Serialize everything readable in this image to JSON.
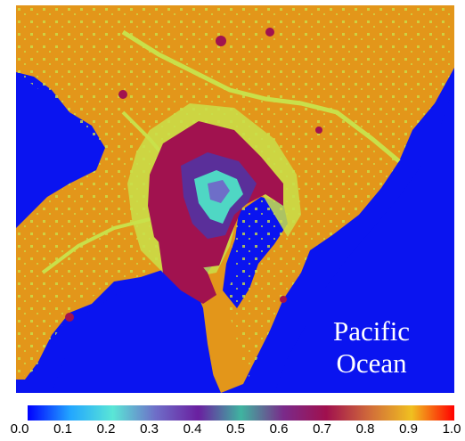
{
  "map": {
    "ocean_label_line1": "Pacific",
    "ocean_label_line2": "Ocean",
    "colors": {
      "water": "#0a14f0",
      "land_base": "#e3961a",
      "suburban": "#c9e04a",
      "urban": "#a1124f",
      "dense_urban": "#5a2f9a",
      "core": "#4fd7c4"
    }
  },
  "colorbar": {
    "ticks": [
      "0.0",
      "0.1",
      "0.2",
      "0.3",
      "0.4",
      "0.5",
      "0.6",
      "0.7",
      "0.8",
      "0.9",
      "1.0"
    ],
    "stops": [
      "#0000ff",
      "#22a6ff",
      "#5ae6d6",
      "#6e6ec8",
      "#6a1fa0",
      "#3fb4a0",
      "#7a2a8a",
      "#a0104e",
      "#d06a3a",
      "#f0c020",
      "#ff0000"
    ]
  }
}
